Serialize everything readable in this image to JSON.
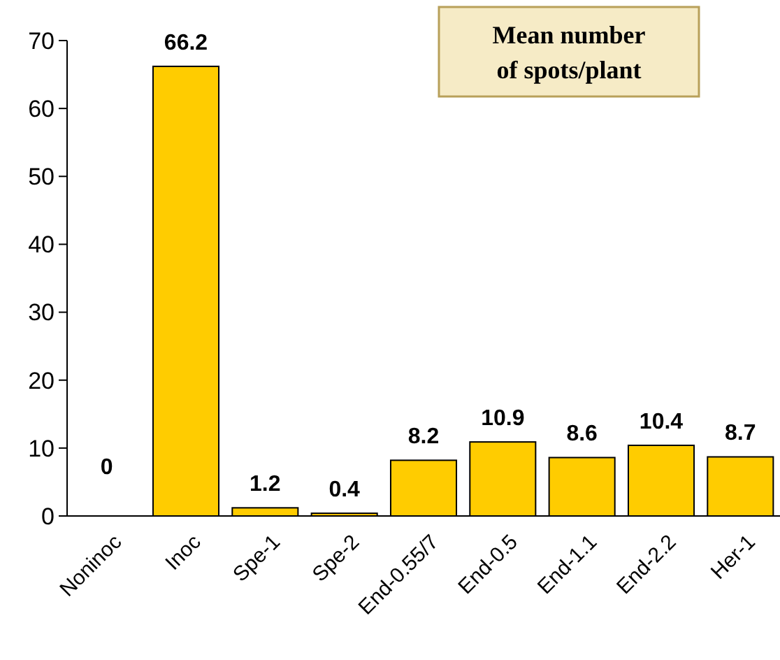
{
  "chart_data": {
    "type": "bar",
    "title": "Mean number of spots/plant",
    "categories": [
      "Noninoc",
      "Inoc",
      "Spe-1",
      "Spe-2",
      "End-0.55/7",
      "End-0.5",
      "End-1.1",
      "End-2.2",
      "Her-1"
    ],
    "values": [
      0,
      66.2,
      1.2,
      0.4,
      8.2,
      10.9,
      8.6,
      10.4,
      8.7
    ],
    "color": "#ffcc00",
    "ylim": [
      0,
      70
    ],
    "yticks": [
      0,
      10,
      20,
      30,
      40,
      50,
      60,
      70
    ],
    "grid": false,
    "data_labels": true
  }
}
